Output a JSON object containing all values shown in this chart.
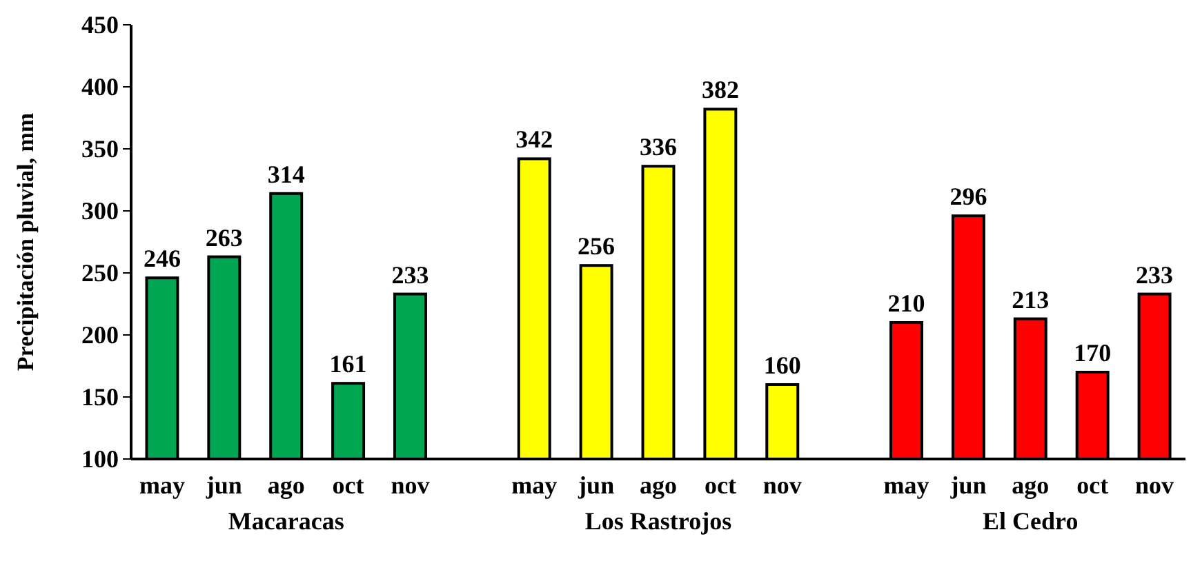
{
  "chart_data": {
    "type": "bar",
    "ylabel": "Precipitación pluvial, mm",
    "categories": [
      "may",
      "jun",
      "ago",
      "oct",
      "nov",
      null,
      "may",
      "jun",
      "ago",
      "oct",
      "nov",
      null,
      "may",
      "jun",
      "ago",
      "oct",
      "nov"
    ],
    "series": [
      {
        "name": "Macaracas",
        "color": "#00a651",
        "values": [
          246,
          263,
          314,
          161,
          233,
          null,
          null,
          null,
          null,
          null,
          null,
          null,
          null,
          null,
          null,
          null,
          null
        ]
      },
      {
        "name": "Los Rastrojos",
        "color": "#ffff00",
        "values": [
          null,
          null,
          null,
          null,
          null,
          null,
          342,
          256,
          336,
          382,
          160,
          null,
          null,
          null,
          null,
          null,
          null
        ]
      },
      {
        "name": "El Cedro",
        "color": "#ff0000",
        "values": [
          null,
          null,
          null,
          null,
          null,
          null,
          null,
          null,
          null,
          null,
          null,
          null,
          210,
          296,
          213,
          170,
          233
        ]
      }
    ],
    "ylim": [
      100,
      450
    ],
    "yticks": [
      100,
      150,
      200,
      250,
      300,
      350,
      400,
      450
    ],
    "data_labels": true,
    "grid": false,
    "legend": false
  }
}
